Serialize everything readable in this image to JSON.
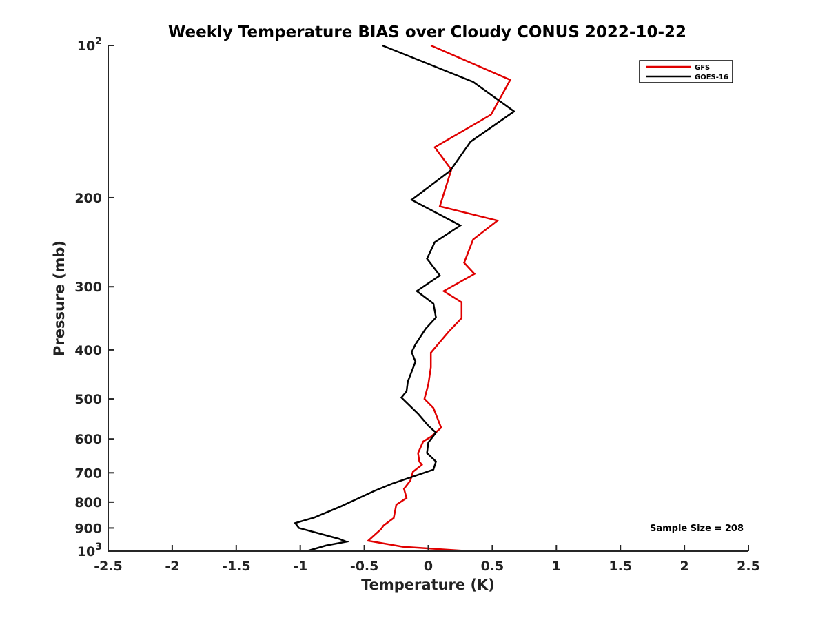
{
  "chart_data": {
    "type": "line",
    "title": "Weekly Temperature BIAS over Cloudy CONUS 2022-10-22",
    "xlabel": "Temperature (K)",
    "ylabel": "Pressure (mb)",
    "xlim": [
      -2.5,
      2.5
    ],
    "ylim": [
      1000,
      100
    ],
    "y_scale": "log",
    "y_reversed": true,
    "grid": false,
    "x_ticks": [
      -2.5,
      -2,
      -1.5,
      -1,
      -0.5,
      0,
      0.5,
      1,
      1.5,
      2,
      2.5
    ],
    "x_tick_labels": [
      "-2.5",
      "-2",
      "-1.5",
      "-1",
      "-0.5",
      "0",
      "0.5",
      "1",
      "1.5",
      "2",
      "2.5"
    ],
    "y_ticks": [
      100,
      200,
      300,
      400,
      500,
      600,
      700,
      800,
      900,
      1000
    ],
    "y_tick_labels": [
      {
        "base": "10",
        "exp": "2"
      },
      {
        "base": "200",
        "exp": ""
      },
      {
        "base": "300",
        "exp": ""
      },
      {
        "base": "400",
        "exp": ""
      },
      {
        "base": "500",
        "exp": ""
      },
      {
        "base": "600",
        "exp": ""
      },
      {
        "base": "700",
        "exp": ""
      },
      {
        "base": "800",
        "exp": ""
      },
      {
        "base": "900",
        "exp": ""
      },
      {
        "base": "10",
        "exp": "3"
      }
    ],
    "legend_position": "top-right",
    "annotation": "Sample Size = 208",
    "series": [
      {
        "name": "GFS",
        "color": "#e00000",
        "points": [
          [
            0.02,
            100
          ],
          [
            0.64,
            117
          ],
          [
            0.49,
            137
          ],
          [
            0.05,
            159
          ],
          [
            0.18,
            176
          ],
          [
            0.09,
            208
          ],
          [
            0.54,
            222
          ],
          [
            0.35,
            242
          ],
          [
            0.28,
            269
          ],
          [
            0.36,
            283
          ],
          [
            0.12,
            306
          ],
          [
            0.26,
            322
          ],
          [
            0.26,
            346
          ],
          [
            0.16,
            368
          ],
          [
            0.09,
            386
          ],
          [
            0.02,
            405
          ],
          [
            0.02,
            433
          ],
          [
            0.0,
            468
          ],
          [
            -0.03,
            500
          ],
          [
            0.04,
            521
          ],
          [
            0.1,
            570
          ],
          [
            0.02,
            594
          ],
          [
            -0.04,
            607
          ],
          [
            -0.08,
            640
          ],
          [
            -0.07,
            665
          ],
          [
            -0.05,
            675
          ],
          [
            -0.12,
            697
          ],
          [
            -0.14,
            725
          ],
          [
            -0.19,
            753
          ],
          [
            -0.17,
            785
          ],
          [
            -0.25,
            810
          ],
          [
            -0.27,
            860
          ],
          [
            -0.35,
            890
          ],
          [
            -0.37,
            905
          ],
          [
            -0.47,
            954
          ],
          [
            -0.2,
            980
          ],
          [
            0.32,
            1000
          ]
        ]
      },
      {
        "name": "GOES-16",
        "color": "#000000",
        "points": [
          [
            -0.36,
            100
          ],
          [
            0.35,
            118
          ],
          [
            0.67,
            135
          ],
          [
            0.33,
            155
          ],
          [
            0.17,
            177
          ],
          [
            -0.13,
            202
          ],
          [
            0.25,
            227
          ],
          [
            0.05,
            245
          ],
          [
            -0.01,
            264
          ],
          [
            0.09,
            285
          ],
          [
            -0.09,
            306
          ],
          [
            0.04,
            324
          ],
          [
            0.06,
            345
          ],
          [
            -0.02,
            363
          ],
          [
            -0.1,
            390
          ],
          [
            -0.13,
            404
          ],
          [
            -0.1,
            422
          ],
          [
            -0.16,
            462
          ],
          [
            -0.17,
            483
          ],
          [
            -0.21,
            497
          ],
          [
            -0.08,
            535
          ],
          [
            0.0,
            565
          ],
          [
            0.06,
            583
          ],
          [
            0.0,
            610
          ],
          [
            -0.01,
            640
          ],
          [
            0.06,
            665
          ],
          [
            0.04,
            690
          ],
          [
            -0.28,
            735
          ],
          [
            -0.42,
            760
          ],
          [
            -0.68,
            815
          ],
          [
            -0.89,
            858
          ],
          [
            -1.04,
            880
          ],
          [
            -1.01,
            900
          ],
          [
            -0.7,
            945
          ],
          [
            -0.64,
            958
          ],
          [
            -0.8,
            975
          ],
          [
            -0.95,
            1000
          ]
        ]
      }
    ]
  }
}
